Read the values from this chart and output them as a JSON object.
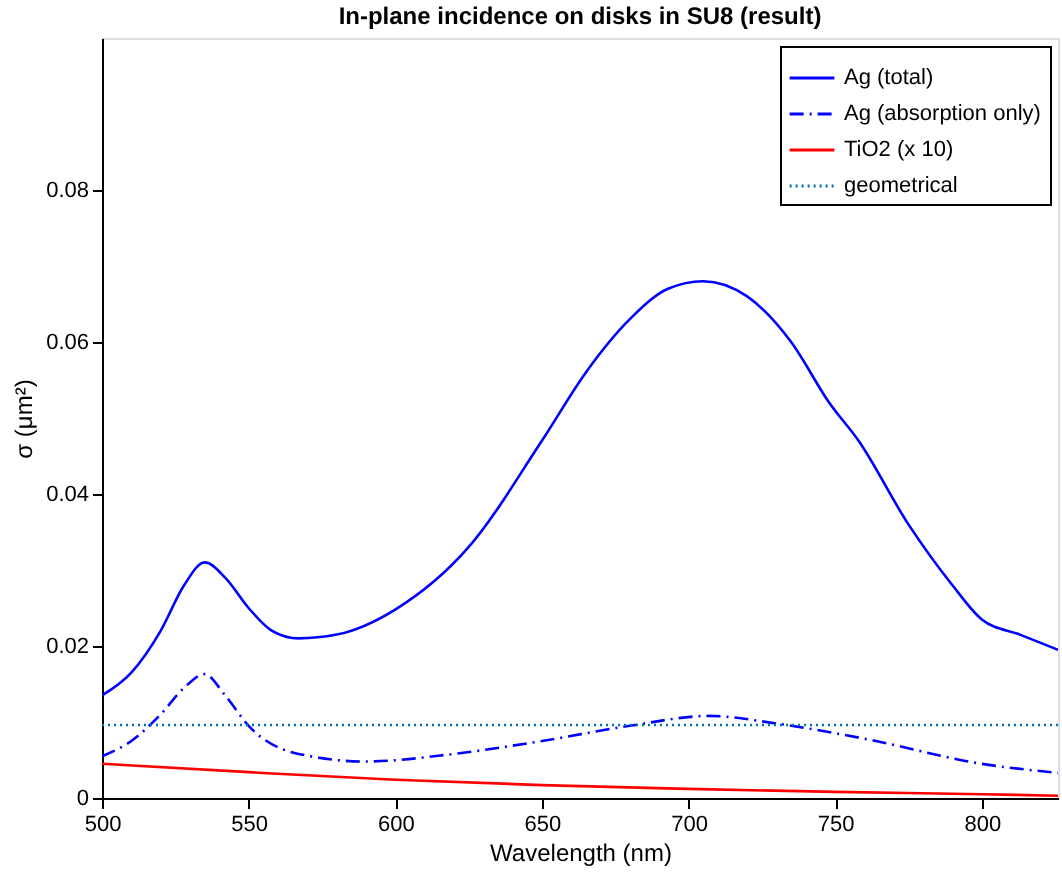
{
  "chart_data": {
    "type": "line",
    "title": "In-plane incidence on disks in SU8 (result)",
    "xlabel": "Wavelength (nm)",
    "ylabel": "σ (μm²)",
    "xlim": [
      500,
      826
    ],
    "ylim": [
      0,
      0.1
    ],
    "xticks": [
      500,
      550,
      600,
      650,
      700,
      750,
      800
    ],
    "yticks": [
      0,
      0.02,
      0.04,
      0.06,
      0.08
    ],
    "grid": false,
    "legend": "top right",
    "marker": "none",
    "series": [
      {
        "name": "Ag (total)",
        "color": "#0000ff",
        "line_style": "solid",
        "x": [
          500,
          510,
          520,
          528,
          535,
          542,
          550,
          558,
          567,
          580,
          600,
          625,
          650,
          665,
          680,
          693,
          705,
          720,
          735,
          748,
          758,
          775,
          790,
          800,
          813,
          826
        ],
        "values": [
          0.0135,
          0.0165,
          0.022,
          0.028,
          0.031,
          0.029,
          0.025,
          0.022,
          0.021,
          0.0215,
          0.0248,
          0.033,
          0.047,
          0.056,
          0.063,
          0.067,
          0.068,
          0.066,
          0.06,
          0.052,
          0.047,
          0.036,
          0.028,
          0.0235,
          0.0215,
          0.0195
        ]
      },
      {
        "name": "Ag (absorption only)",
        "color": "#0000ff",
        "line_style": "dashdot",
        "x": [
          500,
          510,
          520,
          528,
          535,
          542,
          550,
          565,
          590,
          620,
          650,
          680,
          707,
          730,
          760,
          800,
          826
        ],
        "values": [
          0.0055,
          0.0075,
          0.011,
          0.0145,
          0.0163,
          0.0135,
          0.0095,
          0.006,
          0.0048,
          0.0058,
          0.0075,
          0.0095,
          0.0108,
          0.0098,
          0.0078,
          0.0045,
          0.0033
        ]
      },
      {
        "name": "TiO2 (x 10)",
        "color": "#ff0000",
        "line_style": "solid",
        "x": [
          500,
          550,
          600,
          650,
          700,
          750,
          800,
          826
        ],
        "values": [
          0.0045,
          0.0034,
          0.0024,
          0.0017,
          0.0012,
          0.0008,
          0.0005,
          0.0003
        ]
      },
      {
        "name": "geometrical",
        "color": "#0072bd",
        "line_style": "dotted",
        "x": [
          500,
          826
        ],
        "values": [
          0.0096,
          0.0096
        ]
      }
    ]
  }
}
